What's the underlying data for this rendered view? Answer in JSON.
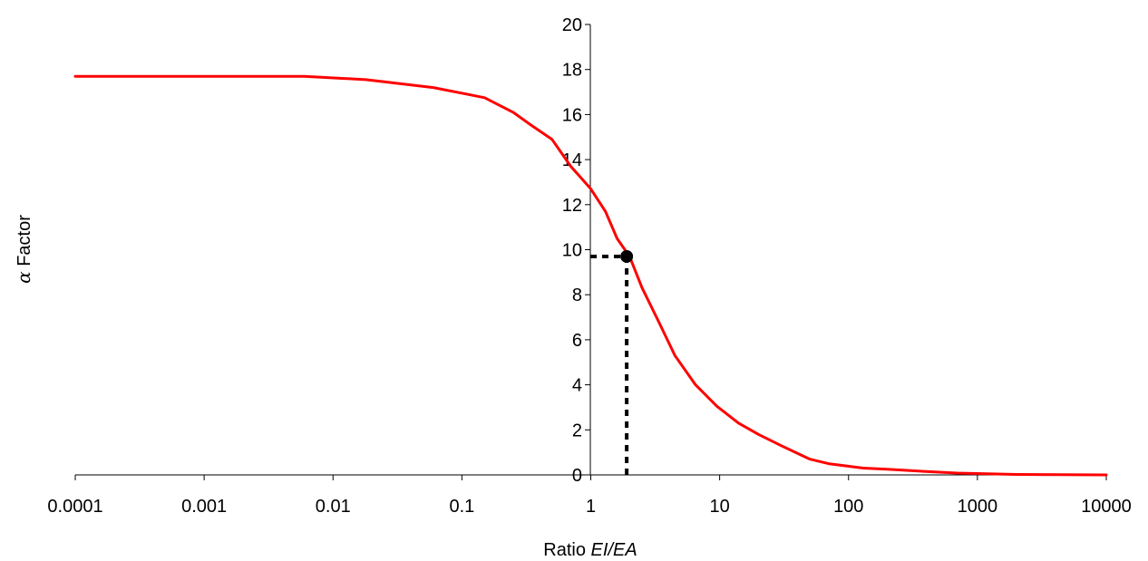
{
  "chart_data": {
    "type": "line",
    "xscale": "log",
    "xlim": [
      0.0001,
      10000
    ],
    "ylim": [
      0,
      20
    ],
    "grid": false,
    "xlabel": {
      "prefix": "Ratio ",
      "italic": "EI/EA"
    },
    "ylabel": {
      "symbol": "α",
      "text": " Factor"
    },
    "x_ticks": [
      {
        "value": 0.0001,
        "label": "0.0001"
      },
      {
        "value": 0.001,
        "label": "0.001"
      },
      {
        "value": 0.01,
        "label": "0.01"
      },
      {
        "value": 0.1,
        "label": "0.1"
      },
      {
        "value": 1,
        "label": "1"
      },
      {
        "value": 10,
        "label": "10"
      },
      {
        "value": 100,
        "label": "100"
      },
      {
        "value": 1000,
        "label": "1000"
      },
      {
        "value": 10000,
        "label": "10000"
      }
    ],
    "y_ticks": [
      {
        "value": 0,
        "label": "0"
      },
      {
        "value": 2,
        "label": "2"
      },
      {
        "value": 4,
        "label": "4"
      },
      {
        "value": 6,
        "label": "6"
      },
      {
        "value": 8,
        "label": "8"
      },
      {
        "value": 10,
        "label": "10"
      },
      {
        "value": 12,
        "label": "12"
      },
      {
        "value": 14,
        "label": "14"
      },
      {
        "value": 16,
        "label": "16"
      },
      {
        "value": 18,
        "label": "18"
      },
      {
        "value": 20,
        "label": "20"
      }
    ],
    "series": [
      {
        "color": "#ff0000",
        "x": [
          0.0001,
          0.006,
          0.018,
          0.06,
          0.1,
          0.15,
          0.25,
          0.35,
          0.5,
          0.7,
          1.0,
          1.3,
          1.6,
          2.0,
          2.5,
          3.3,
          4.5,
          6.5,
          9.5,
          14,
          20,
          30,
          50,
          70,
          130,
          200,
          400,
          700,
          2000,
          10000
        ],
        "y": [
          17.7,
          17.7,
          17.55,
          17.2,
          16.95,
          16.75,
          16.1,
          15.5,
          14.9,
          13.7,
          12.7,
          11.7,
          10.5,
          9.7,
          8.3,
          6.9,
          5.3,
          4.0,
          3.05,
          2.3,
          1.8,
          1.3,
          0.7,
          0.5,
          0.3,
          0.25,
          0.15,
          0.08,
          0.02,
          0.0
        ]
      }
    ],
    "marker": {
      "x": 1.9,
      "y": 9.7,
      "color": "#000000"
    }
  }
}
